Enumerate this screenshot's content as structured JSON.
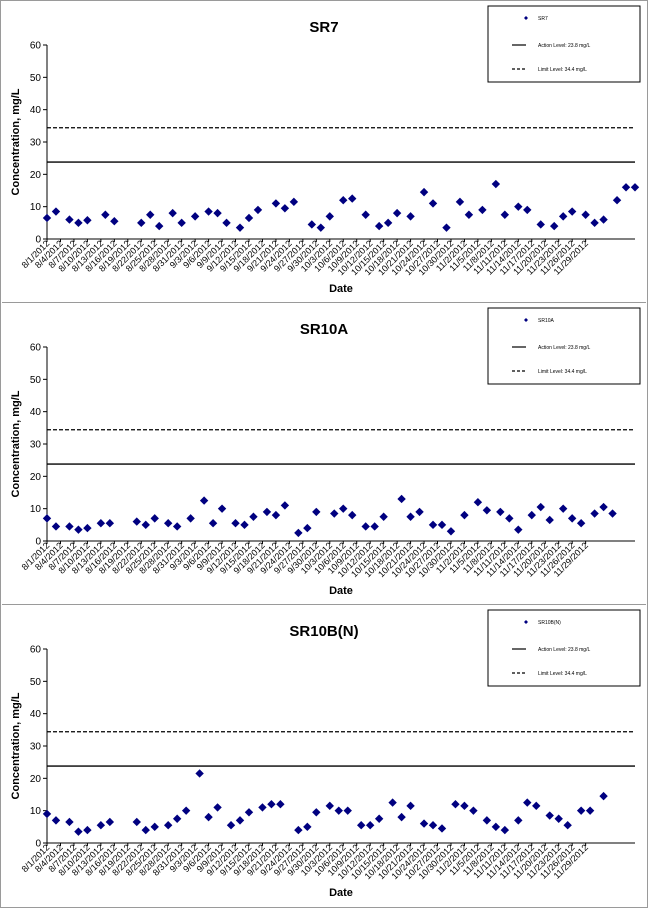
{
  "chart_data": [
    {
      "type": "scatter",
      "title": "SR7",
      "xlabel": "Date",
      "ylabel": "Concentration, mg/L",
      "ylim": [
        0,
        60
      ],
      "yticks": [
        0,
        10,
        20,
        30,
        40,
        50,
        60
      ],
      "xticks": [
        "8/1/2012",
        "8/4/2012",
        "8/7/2012",
        "8/10/2012",
        "8/13/2012",
        "8/16/2012",
        "8/19/2012",
        "8/22/2012",
        "8/25/2012",
        "8/28/2012",
        "8/31/2012",
        "9/3/2012",
        "9/6/2012",
        "9/9/2012",
        "9/12/2012",
        "9/15/2012",
        "9/18/2012",
        "9/21/2012",
        "9/24/2012",
        "9/27/2012",
        "9/30/2012",
        "10/3/2012",
        "10/6/2012",
        "10/9/2012",
        "10/12/2012",
        "10/15/2012",
        "10/18/2012",
        "10/21/2012",
        "10/24/2012",
        "10/27/2012",
        "10/30/2012",
        "11/2/2012",
        "11/5/2012",
        "11/8/2012",
        "11/11/2012",
        "11/14/2012",
        "11/17/2012",
        "11/20/2012",
        "11/23/2012",
        "11/26/2012",
        "11/29/2012"
      ],
      "grid": false,
      "legend_position": "top-right",
      "legend": [
        "SR7",
        "Action Level: 23.8 mg/L",
        "Limit Level: 34.4 mg/L"
      ],
      "action_level": 23.8,
      "limit_level": 34.4,
      "series": [
        {
          "marker_color": "#000080",
          "points": [
            {
              "x": "8/1/2012",
              "y": 6.5
            },
            {
              "x": "8/3/2012",
              "y": 8.5
            },
            {
              "x": "8/6/2012",
              "y": 6
            },
            {
              "x": "8/8/2012",
              "y": 5
            },
            {
              "x": "8/10/2012",
              "y": 5.8
            },
            {
              "x": "8/14/2012",
              "y": 7.5
            },
            {
              "x": "8/16/2012",
              "y": 5.5
            },
            {
              "x": "8/22/2012",
              "y": 5
            },
            {
              "x": "8/24/2012",
              "y": 7.5
            },
            {
              "x": "8/26/2012",
              "y": 4
            },
            {
              "x": "8/29/2012",
              "y": 8
            },
            {
              "x": "8/31/2012",
              "y": 5
            },
            {
              "x": "9/3/2012",
              "y": 7
            },
            {
              "x": "9/6/2012",
              "y": 8.5
            },
            {
              "x": "9/8/2012",
              "y": 8
            },
            {
              "x": "9/10/2012",
              "y": 5
            },
            {
              "x": "9/13/2012",
              "y": 3.5
            },
            {
              "x": "9/15/2012",
              "y": 6.5
            },
            {
              "x": "9/17/2012",
              "y": 9
            },
            {
              "x": "9/21/2012",
              "y": 11
            },
            {
              "x": "9/23/2012",
              "y": 9.5
            },
            {
              "x": "9/25/2012",
              "y": 11.5
            },
            {
              "x": "9/29/2012",
              "y": 4.5
            },
            {
              "x": "10/1/2012",
              "y": 3.5
            },
            {
              "x": "10/3/2012",
              "y": 7
            },
            {
              "x": "10/6/2012",
              "y": 12
            },
            {
              "x": "10/8/2012",
              "y": 12.5
            },
            {
              "x": "10/11/2012",
              "y": 7.5
            },
            {
              "x": "10/14/2012",
              "y": 4
            },
            {
              "x": "10/16/2012",
              "y": 5
            },
            {
              "x": "10/18/2012",
              "y": 8
            },
            {
              "x": "10/21/2012",
              "y": 7
            },
            {
              "x": "10/24/2012",
              "y": 14.5
            },
            {
              "x": "10/26/2012",
              "y": 11
            },
            {
              "x": "10/29/2012",
              "y": 3.5
            },
            {
              "x": "11/1/2012",
              "y": 11.5
            },
            {
              "x": "11/3/2012",
              "y": 7.5
            },
            {
              "x": "11/6/2012",
              "y": 9
            },
            {
              "x": "11/9/2012",
              "y": 17
            },
            {
              "x": "11/11/2012",
              "y": 7.5
            },
            {
              "x": "11/14/2012",
              "y": 10
            },
            {
              "x": "11/16/2012",
              "y": 9
            },
            {
              "x": "11/19/2012",
              "y": 4.5
            },
            {
              "x": "11/22/2012",
              "y": 4
            },
            {
              "x": "11/24/2012",
              "y": 7
            },
            {
              "x": "11/26/2012",
              "y": 8.5
            },
            {
              "x": "11/29/2012",
              "y": 7.5
            },
            {
              "x": "12/1/2012",
              "y": 5
            },
            {
              "x": "12/3/2012",
              "y": 6
            },
            {
              "x": "12/6/2012",
              "y": 12
            },
            {
              "x": "12/8/2012",
              "y": 16
            },
            {
              "x": "12/10/2012",
              "y": 16
            }
          ]
        }
      ]
    },
    {
      "type": "scatter",
      "title": "SR10A",
      "xlabel": "Date",
      "ylabel": "Concentration, mg/L",
      "ylim": [
        0,
        60
      ],
      "yticks": [
        0,
        10,
        20,
        30,
        40,
        50,
        60
      ],
      "xticks": [
        "8/1/2012",
        "8/4/2012",
        "8/7/2012",
        "8/10/2012",
        "8/13/2012",
        "8/16/2012",
        "8/19/2012",
        "8/22/2012",
        "8/25/2012",
        "8/28/2012",
        "8/31/2012",
        "9/3/2012",
        "9/6/2012",
        "9/9/2012",
        "9/12/2012",
        "9/15/2012",
        "9/18/2012",
        "9/21/2012",
        "9/24/2012",
        "9/27/2012",
        "9/30/2012",
        "10/3/2012",
        "10/6/2012",
        "10/9/2012",
        "10/12/2012",
        "10/15/2012",
        "10/18/2012",
        "10/21/2012",
        "10/24/2012",
        "10/27/2012",
        "10/30/2012",
        "11/2/2012",
        "11/5/2012",
        "11/8/2012",
        "11/11/2012",
        "11/14/2012",
        "11/17/2012",
        "11/20/2012",
        "11/23/2012",
        "11/26/2012",
        "11/29/2012"
      ],
      "grid": false,
      "legend_position": "top-right",
      "legend": [
        "SR10A",
        "Action Level: 23.8 mg/L",
        "Limit Level: 34.4 mg/L"
      ],
      "action_level": 23.8,
      "limit_level": 34.4,
      "series": [
        {
          "marker_color": "#000080",
          "points": [
            {
              "x": "8/1/2012",
              "y": 7
            },
            {
              "x": "8/3/2012",
              "y": 4.5
            },
            {
              "x": "8/6/2012",
              "y": 4.5
            },
            {
              "x": "8/8/2012",
              "y": 3.5
            },
            {
              "x": "8/10/2012",
              "y": 4
            },
            {
              "x": "8/13/2012",
              "y": 5.5
            },
            {
              "x": "8/15/2012",
              "y": 5.5
            },
            {
              "x": "8/21/2012",
              "y": 6
            },
            {
              "x": "8/23/2012",
              "y": 5
            },
            {
              "x": "8/25/2012",
              "y": 7
            },
            {
              "x": "8/28/2012",
              "y": 5.5
            },
            {
              "x": "8/30/2012",
              "y": 4.5
            },
            {
              "x": "9/2/2012",
              "y": 7
            },
            {
              "x": "9/5/2012",
              "y": 12.5
            },
            {
              "x": "9/7/2012",
              "y": 5.5
            },
            {
              "x": "9/9/2012",
              "y": 10
            },
            {
              "x": "9/12/2012",
              "y": 5.5
            },
            {
              "x": "9/14/2012",
              "y": 5
            },
            {
              "x": "9/16/2012",
              "y": 7.5
            },
            {
              "x": "9/19/2012",
              "y": 9
            },
            {
              "x": "9/21/2012",
              "y": 8
            },
            {
              "x": "9/23/2012",
              "y": 11
            },
            {
              "x": "9/26/2012",
              "y": 2.5
            },
            {
              "x": "9/28/2012",
              "y": 4
            },
            {
              "x": "9/30/2012",
              "y": 9
            },
            {
              "x": "10/4/2012",
              "y": 8.5
            },
            {
              "x": "10/6/2012",
              "y": 10
            },
            {
              "x": "10/8/2012",
              "y": 8
            },
            {
              "x": "10/11/2012",
              "y": 4.5
            },
            {
              "x": "10/13/2012",
              "y": 4.5
            },
            {
              "x": "10/15/2012",
              "y": 7.5
            },
            {
              "x": "10/19/2012",
              "y": 13
            },
            {
              "x": "10/21/2012",
              "y": 7.5
            },
            {
              "x": "10/23/2012",
              "y": 9
            },
            {
              "x": "10/26/2012",
              "y": 5
            },
            {
              "x": "10/28/2012",
              "y": 5
            },
            {
              "x": "10/30/2012",
              "y": 3
            },
            {
              "x": "11/2/2012",
              "y": 8
            },
            {
              "x": "11/5/2012",
              "y": 12
            },
            {
              "x": "11/7/2012",
              "y": 9.5
            },
            {
              "x": "11/10/2012",
              "y": 9
            },
            {
              "x": "11/12/2012",
              "y": 7
            },
            {
              "x": "11/14/2012",
              "y": 3.5
            },
            {
              "x": "11/17/2012",
              "y": 8
            },
            {
              "x": "11/19/2012",
              "y": 10.5
            },
            {
              "x": "11/21/2012",
              "y": 6.5
            },
            {
              "x": "11/24/2012",
              "y": 10
            },
            {
              "x": "11/26/2012",
              "y": 7
            },
            {
              "x": "11/28/2012",
              "y": 5.5
            },
            {
              "x": "12/1/2012",
              "y": 8.5
            },
            {
              "x": "12/3/2012",
              "y": 10.5
            },
            {
              "x": "12/5/2012",
              "y": 8.5
            }
          ]
        }
      ]
    },
    {
      "type": "scatter",
      "title": "SR10B(N)",
      "xlabel": "Date",
      "ylabel": "Concentration, mg/L",
      "ylim": [
        0,
        60
      ],
      "yticks": [
        0,
        10,
        20,
        30,
        40,
        50,
        60
      ],
      "xticks": [
        "8/1/2012",
        "8/4/2012",
        "8/7/2012",
        "8/10/2012",
        "8/13/2012",
        "8/16/2012",
        "8/19/2012",
        "8/22/2012",
        "8/25/2012",
        "8/28/2012",
        "8/31/2012",
        "9/3/2012",
        "9/6/2012",
        "9/9/2012",
        "9/12/2012",
        "9/15/2012",
        "9/18/2012",
        "9/21/2012",
        "9/24/2012",
        "9/27/2012",
        "9/30/2012",
        "10/3/2012",
        "10/6/2012",
        "10/9/2012",
        "10/12/2012",
        "10/15/2012",
        "10/18/2012",
        "10/21/2012",
        "10/24/2012",
        "10/27/2012",
        "10/30/2012",
        "11/2/2012",
        "11/5/2012",
        "11/8/2012",
        "11/11/2012",
        "11/14/2012",
        "11/17/2012",
        "11/20/2012",
        "11/23/2012",
        "11/26/2012",
        "11/29/2012"
      ],
      "grid": false,
      "legend_position": "top-right",
      "legend": [
        "SR10B(N)",
        "Action Level: 23.8 mg/L",
        "Limit Level: 34.4 mg/L"
      ],
      "action_level": 23.8,
      "limit_level": 34.4,
      "series": [
        {
          "marker_color": "#000080",
          "points": [
            {
              "x": "8/1/2012",
              "y": 9
            },
            {
              "x": "8/3/2012",
              "y": 7
            },
            {
              "x": "8/6/2012",
              "y": 6.5
            },
            {
              "x": "8/8/2012",
              "y": 3.5
            },
            {
              "x": "8/10/2012",
              "y": 4
            },
            {
              "x": "8/13/2012",
              "y": 5.5
            },
            {
              "x": "8/15/2012",
              "y": 6.5
            },
            {
              "x": "8/21/2012",
              "y": 6.5
            },
            {
              "x": "8/23/2012",
              "y": 4
            },
            {
              "x": "8/25/2012",
              "y": 5
            },
            {
              "x": "8/28/2012",
              "y": 5.5
            },
            {
              "x": "8/30/2012",
              "y": 7.5
            },
            {
              "x": "9/1/2012",
              "y": 10
            },
            {
              "x": "9/4/2012",
              "y": 21.5
            },
            {
              "x": "9/6/2012",
              "y": 8
            },
            {
              "x": "9/8/2012",
              "y": 11
            },
            {
              "x": "9/11/2012",
              "y": 5.5
            },
            {
              "x": "9/13/2012",
              "y": 7
            },
            {
              "x": "9/15/2012",
              "y": 9.5
            },
            {
              "x": "9/18/2012",
              "y": 11
            },
            {
              "x": "9/20/2012",
              "y": 12
            },
            {
              "x": "9/22/2012",
              "y": 12
            },
            {
              "x": "9/26/2012",
              "y": 4
            },
            {
              "x": "9/28/2012",
              "y": 5
            },
            {
              "x": "9/30/2012",
              "y": 9.5
            },
            {
              "x": "10/3/2012",
              "y": 11.5
            },
            {
              "x": "10/5/2012",
              "y": 10
            },
            {
              "x": "10/7/2012",
              "y": 10
            },
            {
              "x": "10/10/2012",
              "y": 5.5
            },
            {
              "x": "10/12/2012",
              "y": 5.5
            },
            {
              "x": "10/14/2012",
              "y": 7.5
            },
            {
              "x": "10/17/2012",
              "y": 12.5
            },
            {
              "x": "10/19/2012",
              "y": 8
            },
            {
              "x": "10/21/2012",
              "y": 11.5
            },
            {
              "x": "10/24/2012",
              "y": 6
            },
            {
              "x": "10/26/2012",
              "y": 5.5
            },
            {
              "x": "10/28/2012",
              "y": 4.5
            },
            {
              "x": "10/31/2012",
              "y": 12
            },
            {
              "x": "11/2/2012",
              "y": 11.5
            },
            {
              "x": "11/4/2012",
              "y": 10
            },
            {
              "x": "11/7/2012",
              "y": 7
            },
            {
              "x": "11/9/2012",
              "y": 5
            },
            {
              "x": "11/11/2012",
              "y": 4
            },
            {
              "x": "11/14/2012",
              "y": 7
            },
            {
              "x": "11/16/2012",
              "y": 12.5
            },
            {
              "x": "11/18/2012",
              "y": 11.5
            },
            {
              "x": "11/21/2012",
              "y": 8.5
            },
            {
              "x": "11/23/2012",
              "y": 7.5
            },
            {
              "x": "11/25/2012",
              "y": 5.5
            },
            {
              "x": "11/28/2012",
              "y": 10
            },
            {
              "x": "11/30/2012",
              "y": 10
            },
            {
              "x": "12/3/2012",
              "y": 14.5
            }
          ]
        }
      ]
    }
  ]
}
